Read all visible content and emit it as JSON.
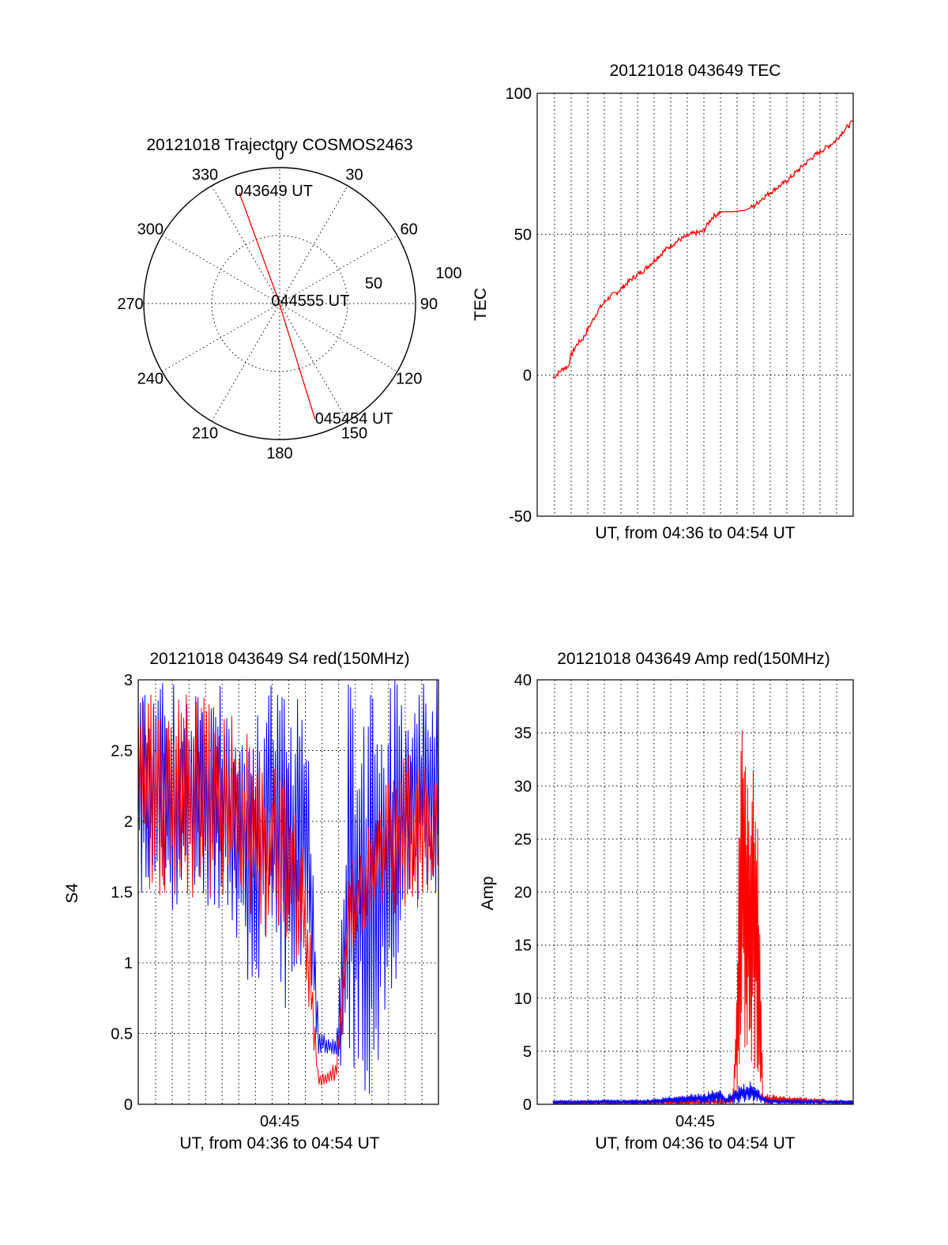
{
  "colors": {
    "red": "#ff0000",
    "blue": "#0000ff",
    "axis": "#000000"
  },
  "chart_data": [
    {
      "type": "polar",
      "title": "20121018 Trajectory COSMOS2463",
      "angle_labels": [
        "0",
        "30",
        "60",
        "90",
        "120",
        "150",
        "180",
        "210",
        "240",
        "270",
        "300",
        "330"
      ],
      "radial_labels": [
        "50",
        "100"
      ],
      "series": [
        {
          "color": "red",
          "points": [
            {
              "azimuth": 340,
              "elevation": 12,
              "label": "043649 UT"
            },
            {
              "azimuth": 340,
              "elevation": 86,
              "label": "044555 UT"
            },
            {
              "azimuth": 163,
              "elevation": 10,
              "label": "045454 UT"
            }
          ]
        }
      ]
    },
    {
      "type": "line",
      "title": "20121018 043649 TEC",
      "ylabel": "TEC",
      "xlabel": "UT, from 04:36 to 04:54 UT",
      "ylim": [
        -50,
        100
      ],
      "yticks": [
        "-50",
        "0",
        "50",
        "100"
      ],
      "grid": true,
      "series": [
        {
          "color": "red",
          "x": [
            0,
            0.02,
            0.035,
            0.05,
            0.06,
            0.08,
            0.1,
            0.12,
            0.15,
            0.18,
            0.22,
            0.26,
            0.3,
            0.34,
            0.38,
            0.42,
            0.46,
            0.5,
            0.53,
            0.56,
            0.6,
            0.64,
            0.67,
            0.7,
            0.74,
            0.78,
            0.82,
            0.86,
            0.9,
            0.94,
            0.97,
            1.0
          ],
          "values": [
            -1,
            1,
            2.5,
            3,
            7,
            11,
            13,
            17,
            23,
            27,
            30,
            34,
            37,
            41,
            45,
            48,
            50,
            51,
            56,
            58,
            58,
            58.5,
            60,
            63,
            66,
            69,
            73,
            77,
            80,
            83,
            87,
            90
          ]
        }
      ]
    },
    {
      "type": "line",
      "title": "20121018 043649 S4 red(150MHz)",
      "ylabel": "S4",
      "xlabel": "UT, from 04:36 to 04:54 UT",
      "xtick": "04:45",
      "ylim": [
        0,
        3
      ],
      "yticks": [
        "0",
        "0.5",
        "1",
        "1.5",
        "2",
        "2.5",
        "3"
      ],
      "grid": true,
      "series": [
        {
          "color": "blue",
          "envelope": [
            {
              "x": 0.0,
              "lo": 1.45,
              "hi": 3.0
            },
            {
              "x": 0.1,
              "lo": 1.35,
              "hi": 3.0
            },
            {
              "x": 0.2,
              "lo": 1.4,
              "hi": 3.0
            },
            {
              "x": 0.3,
              "lo": 1.35,
              "hi": 3.0
            },
            {
              "x": 0.38,
              "lo": 0.7,
              "hi": 2.7
            },
            {
              "x": 0.45,
              "lo": 1.1,
              "hi": 3.0
            },
            {
              "x": 0.5,
              "lo": 0.5,
              "hi": 3.0
            },
            {
              "x": 0.56,
              "lo": 1.0,
              "hi": 3.0
            },
            {
              "x": 0.6,
              "lo": 0.35,
              "hi": 0.55
            },
            {
              "x": 0.66,
              "lo": 0.35,
              "hi": 0.45
            },
            {
              "x": 0.7,
              "lo": 0.0,
              "hi": 3.0
            },
            {
              "x": 0.8,
              "lo": 0.0,
              "hi": 3.0
            },
            {
              "x": 0.9,
              "lo": 1.4,
              "hi": 3.0
            },
            {
              "x": 1.0,
              "lo": 1.5,
              "hi": 3.0
            }
          ]
        },
        {
          "color": "red",
          "envelope": [
            {
              "x": 0.0,
              "lo": 1.55,
              "hi": 3.0
            },
            {
              "x": 0.1,
              "lo": 1.45,
              "hi": 2.9
            },
            {
              "x": 0.2,
              "lo": 1.45,
              "hi": 2.9
            },
            {
              "x": 0.3,
              "lo": 1.45,
              "hi": 2.8
            },
            {
              "x": 0.4,
              "lo": 1.2,
              "hi": 2.6
            },
            {
              "x": 0.5,
              "lo": 1.1,
              "hi": 2.4
            },
            {
              "x": 0.56,
              "lo": 0.7,
              "hi": 1.7
            },
            {
              "x": 0.6,
              "lo": 0.12,
              "hi": 0.2
            },
            {
              "x": 0.66,
              "lo": 0.15,
              "hi": 0.3
            },
            {
              "x": 0.7,
              "lo": 0.9,
              "hi": 1.7
            },
            {
              "x": 0.8,
              "lo": 1.4,
              "hi": 2.2
            },
            {
              "x": 0.9,
              "lo": 1.3,
              "hi": 2.5
            },
            {
              "x": 1.0,
              "lo": 1.5,
              "hi": 2.3
            }
          ]
        }
      ]
    },
    {
      "type": "line",
      "title": "20121018 043649 Amp red(150MHz)",
      "ylabel": "Amp",
      "xlabel": "UT, from 04:36 to 04:54 UT",
      "xtick": "04:45",
      "ylim": [
        0,
        40
      ],
      "yticks": [
        "0",
        "5",
        "10",
        "15",
        "20",
        "25",
        "30",
        "35",
        "40"
      ],
      "grid": true,
      "series": [
        {
          "color": "red",
          "envelope": [
            {
              "x": 0.0,
              "lo": 0,
              "hi": 0.3
            },
            {
              "x": 0.59,
              "lo": 0,
              "hi": 0.5
            },
            {
              "x": 0.6,
              "lo": 0,
              "hi": 1.5
            },
            {
              "x": 0.61,
              "lo": 0.5,
              "hi": 10
            },
            {
              "x": 0.62,
              "lo": 2,
              "hi": 28
            },
            {
              "x": 0.63,
              "lo": 5,
              "hi": 36.5
            },
            {
              "x": 0.65,
              "lo": 4,
              "hi": 30
            },
            {
              "x": 0.66,
              "lo": 3,
              "hi": 33.5
            },
            {
              "x": 0.68,
              "lo": 2,
              "hi": 29
            },
            {
              "x": 0.69,
              "lo": 0.5,
              "hi": 15
            },
            {
              "x": 0.7,
              "lo": 0,
              "hi": 1
            },
            {
              "x": 1.0,
              "lo": 0,
              "hi": 0.3
            }
          ]
        },
        {
          "color": "blue",
          "envelope": [
            {
              "x": 0.0,
              "lo": 0,
              "hi": 0.4
            },
            {
              "x": 0.3,
              "lo": 0,
              "hi": 0.5
            },
            {
              "x": 0.42,
              "lo": 0,
              "hi": 0.9
            },
            {
              "x": 0.5,
              "lo": 0,
              "hi": 1.1
            },
            {
              "x": 0.55,
              "lo": 0,
              "hi": 1.5
            },
            {
              "x": 0.58,
              "lo": 0,
              "hi": 0.8
            },
            {
              "x": 0.62,
              "lo": 0.1,
              "hi": 1.8
            },
            {
              "x": 0.66,
              "lo": 0.3,
              "hi": 2.3
            },
            {
              "x": 0.69,
              "lo": 0.1,
              "hi": 1.2
            },
            {
              "x": 0.72,
              "lo": 0,
              "hi": 0.5
            },
            {
              "x": 1.0,
              "lo": 0,
              "hi": 0.4
            }
          ]
        }
      ]
    }
  ]
}
